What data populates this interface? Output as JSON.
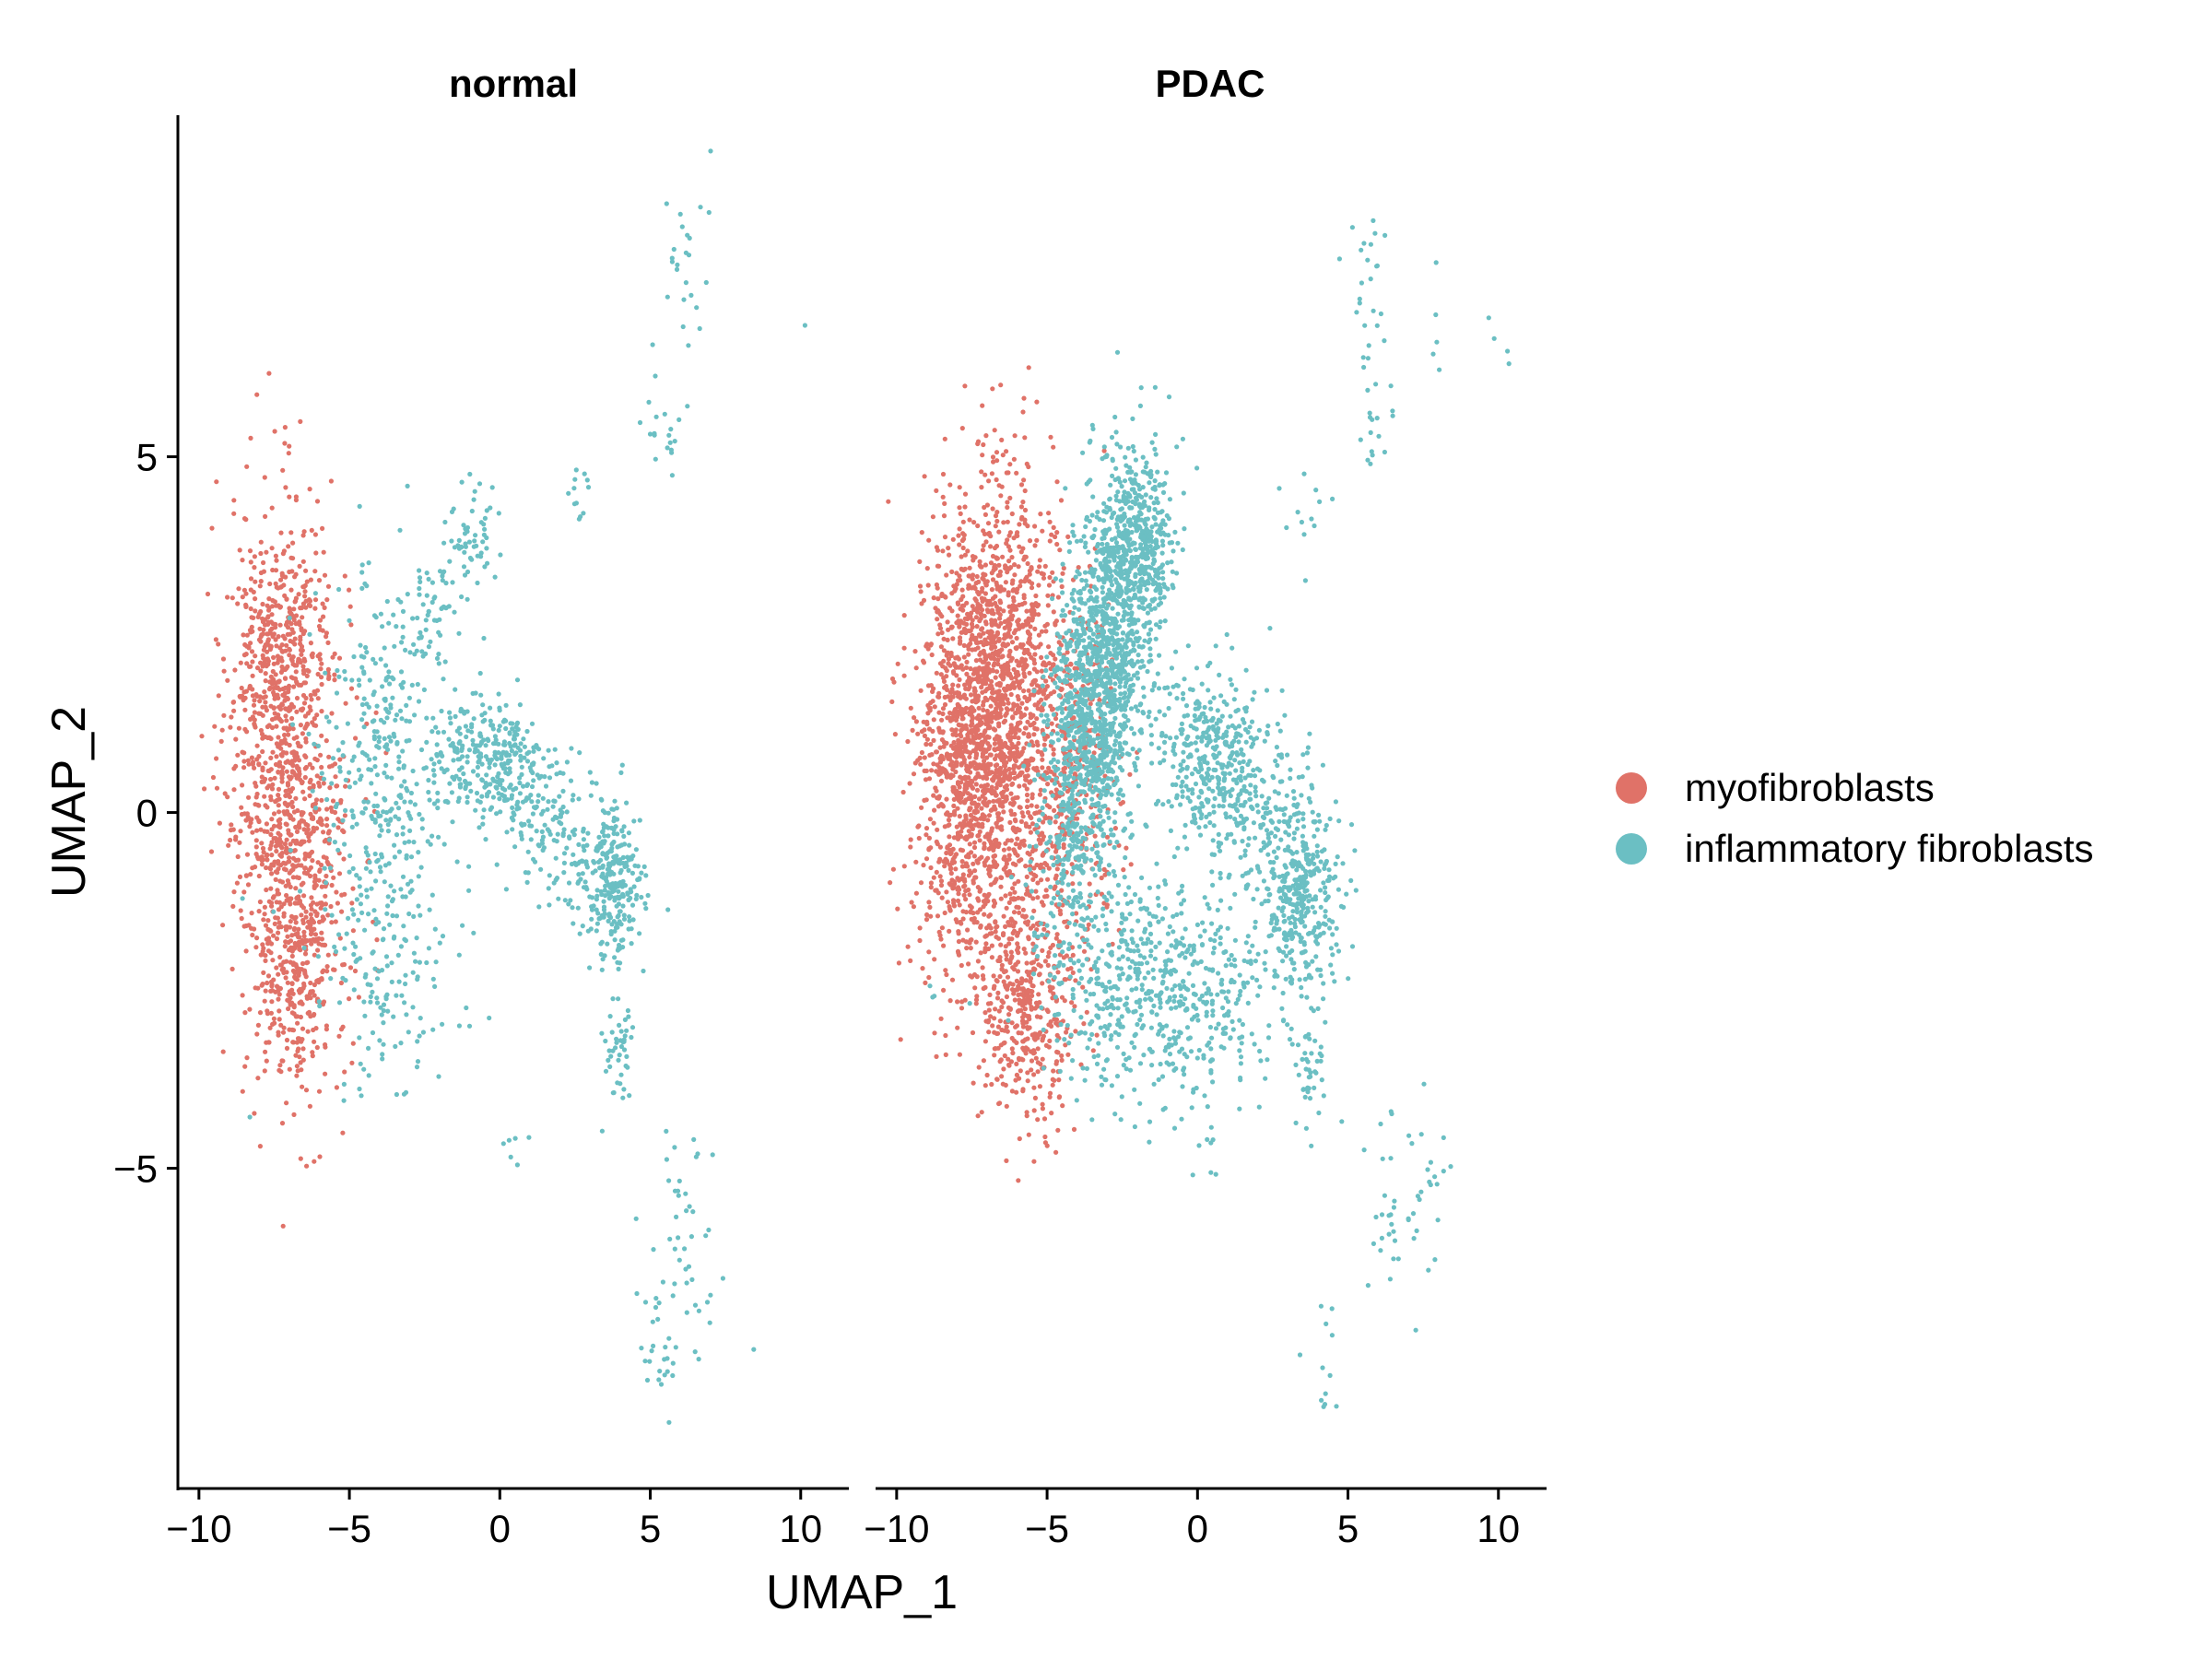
{
  "chart_data": {
    "type": "scatter",
    "xlabel": "UMAP_1",
    "ylabel": "UMAP_2",
    "xlim": [
      -10.7,
      11.6
    ],
    "ylim": [
      -9.5,
      9.8
    ],
    "x_ticks": [
      {
        "value": -10,
        "label": "−10"
      },
      {
        "value": -5,
        "label": "−5"
      },
      {
        "value": 0,
        "label": "0"
      },
      {
        "value": 5,
        "label": "5"
      },
      {
        "value": 10,
        "label": "10"
      }
    ],
    "y_ticks": [
      {
        "value": 5,
        "label": "5"
      },
      {
        "value": 0,
        "label": "0"
      },
      {
        "value": -5,
        "label": "−5"
      }
    ],
    "legend_position": "right",
    "series": [
      {
        "name": "myofibroblasts",
        "color": "#E07268"
      },
      {
        "name": "inflammatory fibroblasts",
        "color": "#6BBFC3"
      }
    ],
    "facets": [
      {
        "title": "normal",
        "clusters": [
          {
            "series": 0,
            "n": 1100,
            "cx": -7.0,
            "cy": 0.3,
            "sx": 1.0,
            "sy": 1.9,
            "rho": -0.15
          },
          {
            "series": 0,
            "n": 180,
            "cx": -6.8,
            "cy": -2.2,
            "sx": 0.5,
            "sy": 0.9,
            "rho": 0
          },
          {
            "series": 0,
            "n": 160,
            "cx": -7.3,
            "cy": 2.4,
            "sx": 0.8,
            "sy": 0.6,
            "rho": 0
          },
          {
            "series": 1,
            "n": 380,
            "cx": -4.0,
            "cy": 0.2,
            "sx": 1.1,
            "sy": 1.6,
            "rho": 0
          },
          {
            "series": 1,
            "n": 280,
            "cx": -0.5,
            "cy": 0.7,
            "sx": 1.1,
            "sy": 0.45,
            "rho": 0
          },
          {
            "series": 1,
            "n": 240,
            "cx": 3.8,
            "cy": -1.0,
            "sx": 0.45,
            "sy": 0.55,
            "rho": 0
          },
          {
            "series": 1,
            "n": 200,
            "cx": 1.8,
            "cy": -0.2,
            "sx": 1.2,
            "sy": 0.6,
            "rho": -0.5
          },
          {
            "series": 1,
            "n": 80,
            "cx": -2.2,
            "cy": 2.9,
            "sx": 0.7,
            "sy": 0.6,
            "rho": 0.5
          },
          {
            "series": 1,
            "n": 45,
            "cx": -1.0,
            "cy": 3.9,
            "sx": 0.4,
            "sy": 0.4,
            "rho": 0
          },
          {
            "series": 1,
            "n": 80,
            "cx": -3.5,
            "cy": -2.5,
            "sx": 1.2,
            "sy": 0.8,
            "rho": 0
          },
          {
            "series": 1,
            "n": 45,
            "cx": 3.9,
            "cy": -3.3,
            "sx": 0.3,
            "sy": 0.4,
            "rho": 0
          },
          {
            "series": 1,
            "n": 22,
            "cx": 6.2,
            "cy": 8.1,
            "sx": 0.35,
            "sy": 0.6,
            "rho": 0
          },
          {
            "series": 1,
            "n": 22,
            "cx": 5.6,
            "cy": 5.7,
            "sx": 0.4,
            "sy": 0.6,
            "rho": 0
          },
          {
            "series": 1,
            "n": 12,
            "cx": 2.7,
            "cy": 4.5,
            "sx": 0.2,
            "sy": 0.3,
            "rho": 0
          },
          {
            "series": 1,
            "n": 45,
            "cx": 6.2,
            "cy": -6.2,
            "sx": 0.6,
            "sy": 1.0,
            "rho": 0
          },
          {
            "series": 1,
            "n": 25,
            "cx": 5.2,
            "cy": -7.4,
            "sx": 0.3,
            "sy": 0.5,
            "rho": 0
          },
          {
            "series": 1,
            "n": 6,
            "cx": 0.6,
            "cy": -4.7,
            "sx": 0.3,
            "sy": 0.2,
            "rho": 0
          },
          {
            "series": 1,
            "n": 1,
            "cx": 10.2,
            "cy": 6.9,
            "sx": 0.05,
            "sy": 0.05,
            "rho": 0
          }
        ]
      },
      {
        "title": "PDAC",
        "clusters": [
          {
            "series": 0,
            "n": 2200,
            "cx": -7.0,
            "cy": 1.2,
            "sx": 1.1,
            "sy": 1.6,
            "rho": 0.15
          },
          {
            "series": 0,
            "n": 400,
            "cx": -5.7,
            "cy": -2.8,
            "sx": 0.8,
            "sy": 0.8,
            "rho": 0
          },
          {
            "series": 0,
            "n": 400,
            "cx": -4.3,
            "cy": 0.5,
            "sx": 0.8,
            "sy": 1.3,
            "rho": 0
          },
          {
            "series": 1,
            "n": 1600,
            "cx": -3.3,
            "cy": 1.8,
            "sx": 0.9,
            "sy": 1.5,
            "rho": 0.55
          },
          {
            "series": 1,
            "n": 300,
            "cx": -1.9,
            "cy": 3.6,
            "sx": 0.6,
            "sy": 0.6,
            "rho": 0
          },
          {
            "series": 1,
            "n": 450,
            "cx": -2.3,
            "cy": -2.4,
            "sx": 1.5,
            "sy": 0.8,
            "rho": 0
          },
          {
            "series": 1,
            "n": 300,
            "cx": 0.3,
            "cy": 0.8,
            "sx": 1.0,
            "sy": 0.6,
            "rho": 0
          },
          {
            "series": 1,
            "n": 300,
            "cx": 3.4,
            "cy": -1.3,
            "sx": 0.6,
            "sy": 0.7,
            "rho": 0
          },
          {
            "series": 1,
            "n": 260,
            "cx": 2.0,
            "cy": 0.0,
            "sx": 1.3,
            "sy": 0.8,
            "rho": -0.4
          },
          {
            "series": 1,
            "n": 200,
            "cx": 0.5,
            "cy": -2.5,
            "sx": 1.2,
            "sy": 0.8,
            "rho": 0
          },
          {
            "series": 1,
            "n": 40,
            "cx": 3.6,
            "cy": -3.6,
            "sx": 0.25,
            "sy": 0.4,
            "rho": 0
          },
          {
            "series": 1,
            "n": 30,
            "cx": 5.8,
            "cy": 7.3,
            "sx": 0.5,
            "sy": 0.9,
            "rho": 0
          },
          {
            "series": 1,
            "n": 12,
            "cx": 5.6,
            "cy": 5.2,
            "sx": 0.4,
            "sy": 0.4,
            "rho": 0
          },
          {
            "series": 1,
            "n": 12,
            "cx": 3.3,
            "cy": 4.0,
            "sx": 0.5,
            "sy": 0.4,
            "rho": 0
          },
          {
            "series": 1,
            "n": 4,
            "cx": 10.3,
            "cy": 6.7,
            "sx": 0.3,
            "sy": 0.2,
            "rho": 0
          },
          {
            "series": 1,
            "n": 5,
            "cx": 8.0,
            "cy": 7.0,
            "sx": 0.2,
            "sy": 0.5,
            "rho": 0
          },
          {
            "series": 1,
            "n": 50,
            "cx": 7.0,
            "cy": -5.3,
            "sx": 0.9,
            "sy": 0.7,
            "rho": 0
          },
          {
            "series": 1,
            "n": 12,
            "cx": 4.4,
            "cy": -7.7,
            "sx": 0.4,
            "sy": 0.6,
            "rho": 0
          },
          {
            "series": 1,
            "n": 8,
            "cx": 0.2,
            "cy": -4.7,
            "sx": 0.3,
            "sy": 0.3,
            "rho": 0
          },
          {
            "series": 1,
            "n": 3,
            "cx": -9.0,
            "cy": -2.5,
            "sx": 0.2,
            "sy": 0.1,
            "rho": 0
          }
        ]
      }
    ]
  }
}
